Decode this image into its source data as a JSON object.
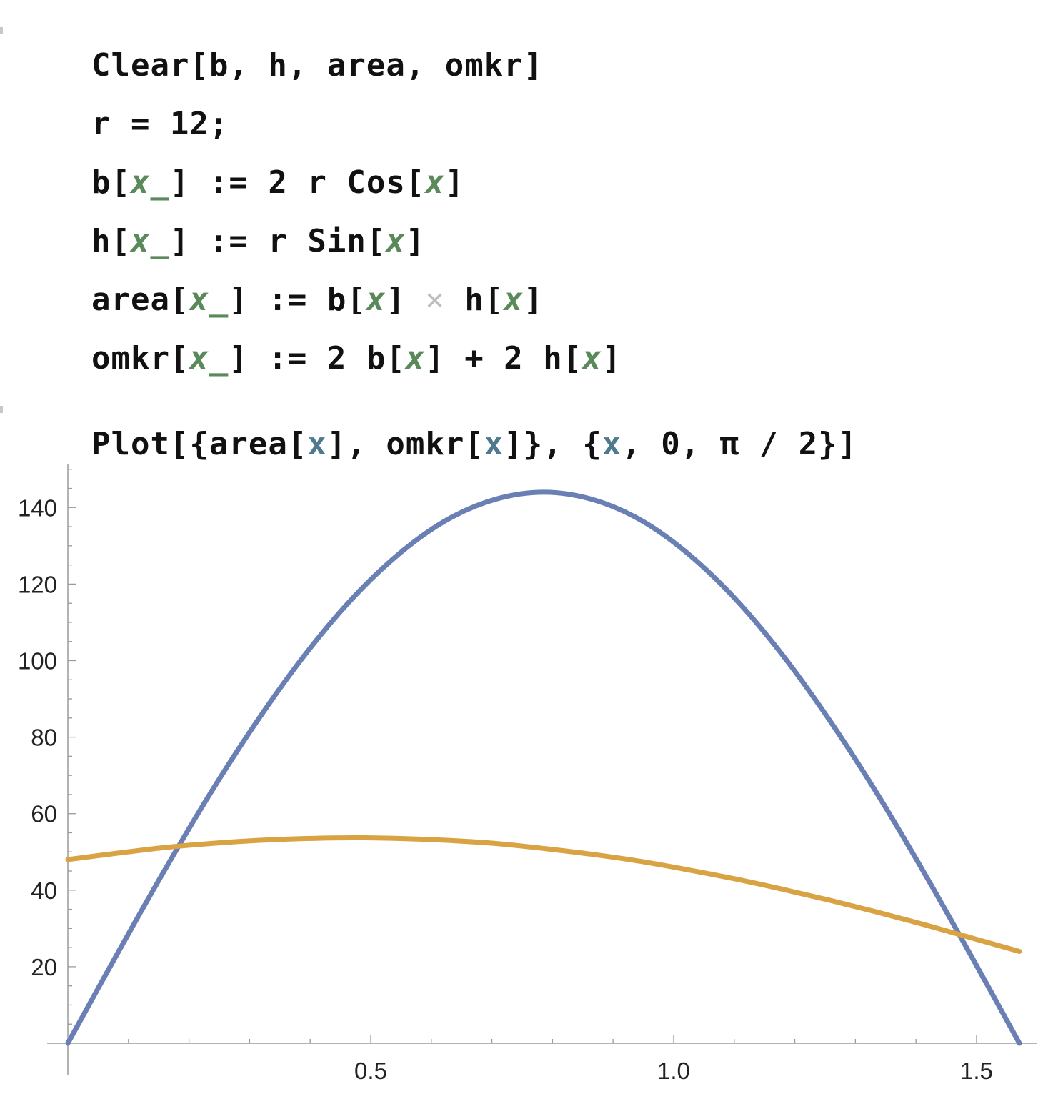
{
  "notebook": {
    "input_cell_1": {
      "lines": [
        {
          "t1": "Clear[b, h, area, omkr]"
        },
        {
          "t1": "r = 12;"
        },
        {
          "t1": "b[",
          "v1": "x_",
          "t2": "] := 2 r Cos[",
          "v2": "x",
          "t3": "]"
        },
        {
          "t1": "h[",
          "v1": "x_",
          "t2": "] := r Sin[",
          "v2": "x",
          "t3": "]"
        },
        {
          "t1": "area[",
          "v1": "x_",
          "t2": "] := b[",
          "v2": "x",
          "t3": "]",
          "op": " × ",
          "t4": "h[",
          "v3": "x",
          "t5": "]"
        },
        {
          "t1": "omkr[",
          "v1": "x_",
          "t2": "] := 2 b[",
          "v2": "x",
          "t3": "] + 2 h[",
          "v3": "x",
          "t4": "]"
        }
      ]
    },
    "input_cell_2": {
      "t1": "Plot[{area[",
      "v1": "x",
      "t2": "], omkr[",
      "v2": "x",
      "t3": "]}, {",
      "v3": "x",
      "t4": ", 0, π / 2}]"
    }
  },
  "chart_data": {
    "type": "line",
    "x_range": [
      0,
      1.5708
    ],
    "ylim": [
      0,
      150
    ],
    "x_ticks": [
      0.5,
      1.0,
      1.5
    ],
    "x_tick_labels": [
      "0.5",
      "1.0",
      "1.5"
    ],
    "y_ticks": [
      20,
      40,
      60,
      80,
      100,
      120,
      140
    ],
    "y_tick_labels": [
      "20",
      "40",
      "60",
      "80",
      "100",
      "120",
      "140"
    ],
    "grid": false,
    "series": [
      {
        "color": "#6a80b4",
        "x": [
          0,
          0.0785,
          0.1571,
          0.2356,
          0.3142,
          0.3927,
          0.4712,
          0.5498,
          0.6283,
          0.7069,
          0.7854,
          0.8639,
          0.9425,
          1.021,
          1.0996,
          1.1781,
          1.2566,
          1.3352,
          1.4137,
          1.4923,
          1.5708
        ],
        "values": [
          0,
          22.5,
          44.5,
          65.4,
          84.6,
          101.8,
          116.5,
          128.3,
          137.0,
          142.2,
          144.0,
          142.2,
          137.0,
          128.3,
          116.5,
          101.8,
          84.6,
          65.4,
          44.5,
          22.5,
          0
        ]
      },
      {
        "color": "#d9a344",
        "x": [
          0,
          0.0785,
          0.1571,
          0.2356,
          0.3142,
          0.3927,
          0.4712,
          0.5498,
          0.6283,
          0.7069,
          0.7854,
          0.8639,
          0.9425,
          1.021,
          1.0996,
          1.1781,
          1.2566,
          1.3352,
          1.4137,
          1.4923,
          1.5708
        ],
        "values": [
          48.0,
          49.6,
          51.1,
          52.2,
          53.0,
          53.5,
          53.7,
          53.5,
          53.0,
          52.2,
          50.9,
          49.4,
          47.6,
          45.4,
          43.0,
          40.3,
          37.4,
          34.3,
          31.0,
          27.5,
          24.0
        ]
      }
    ]
  }
}
